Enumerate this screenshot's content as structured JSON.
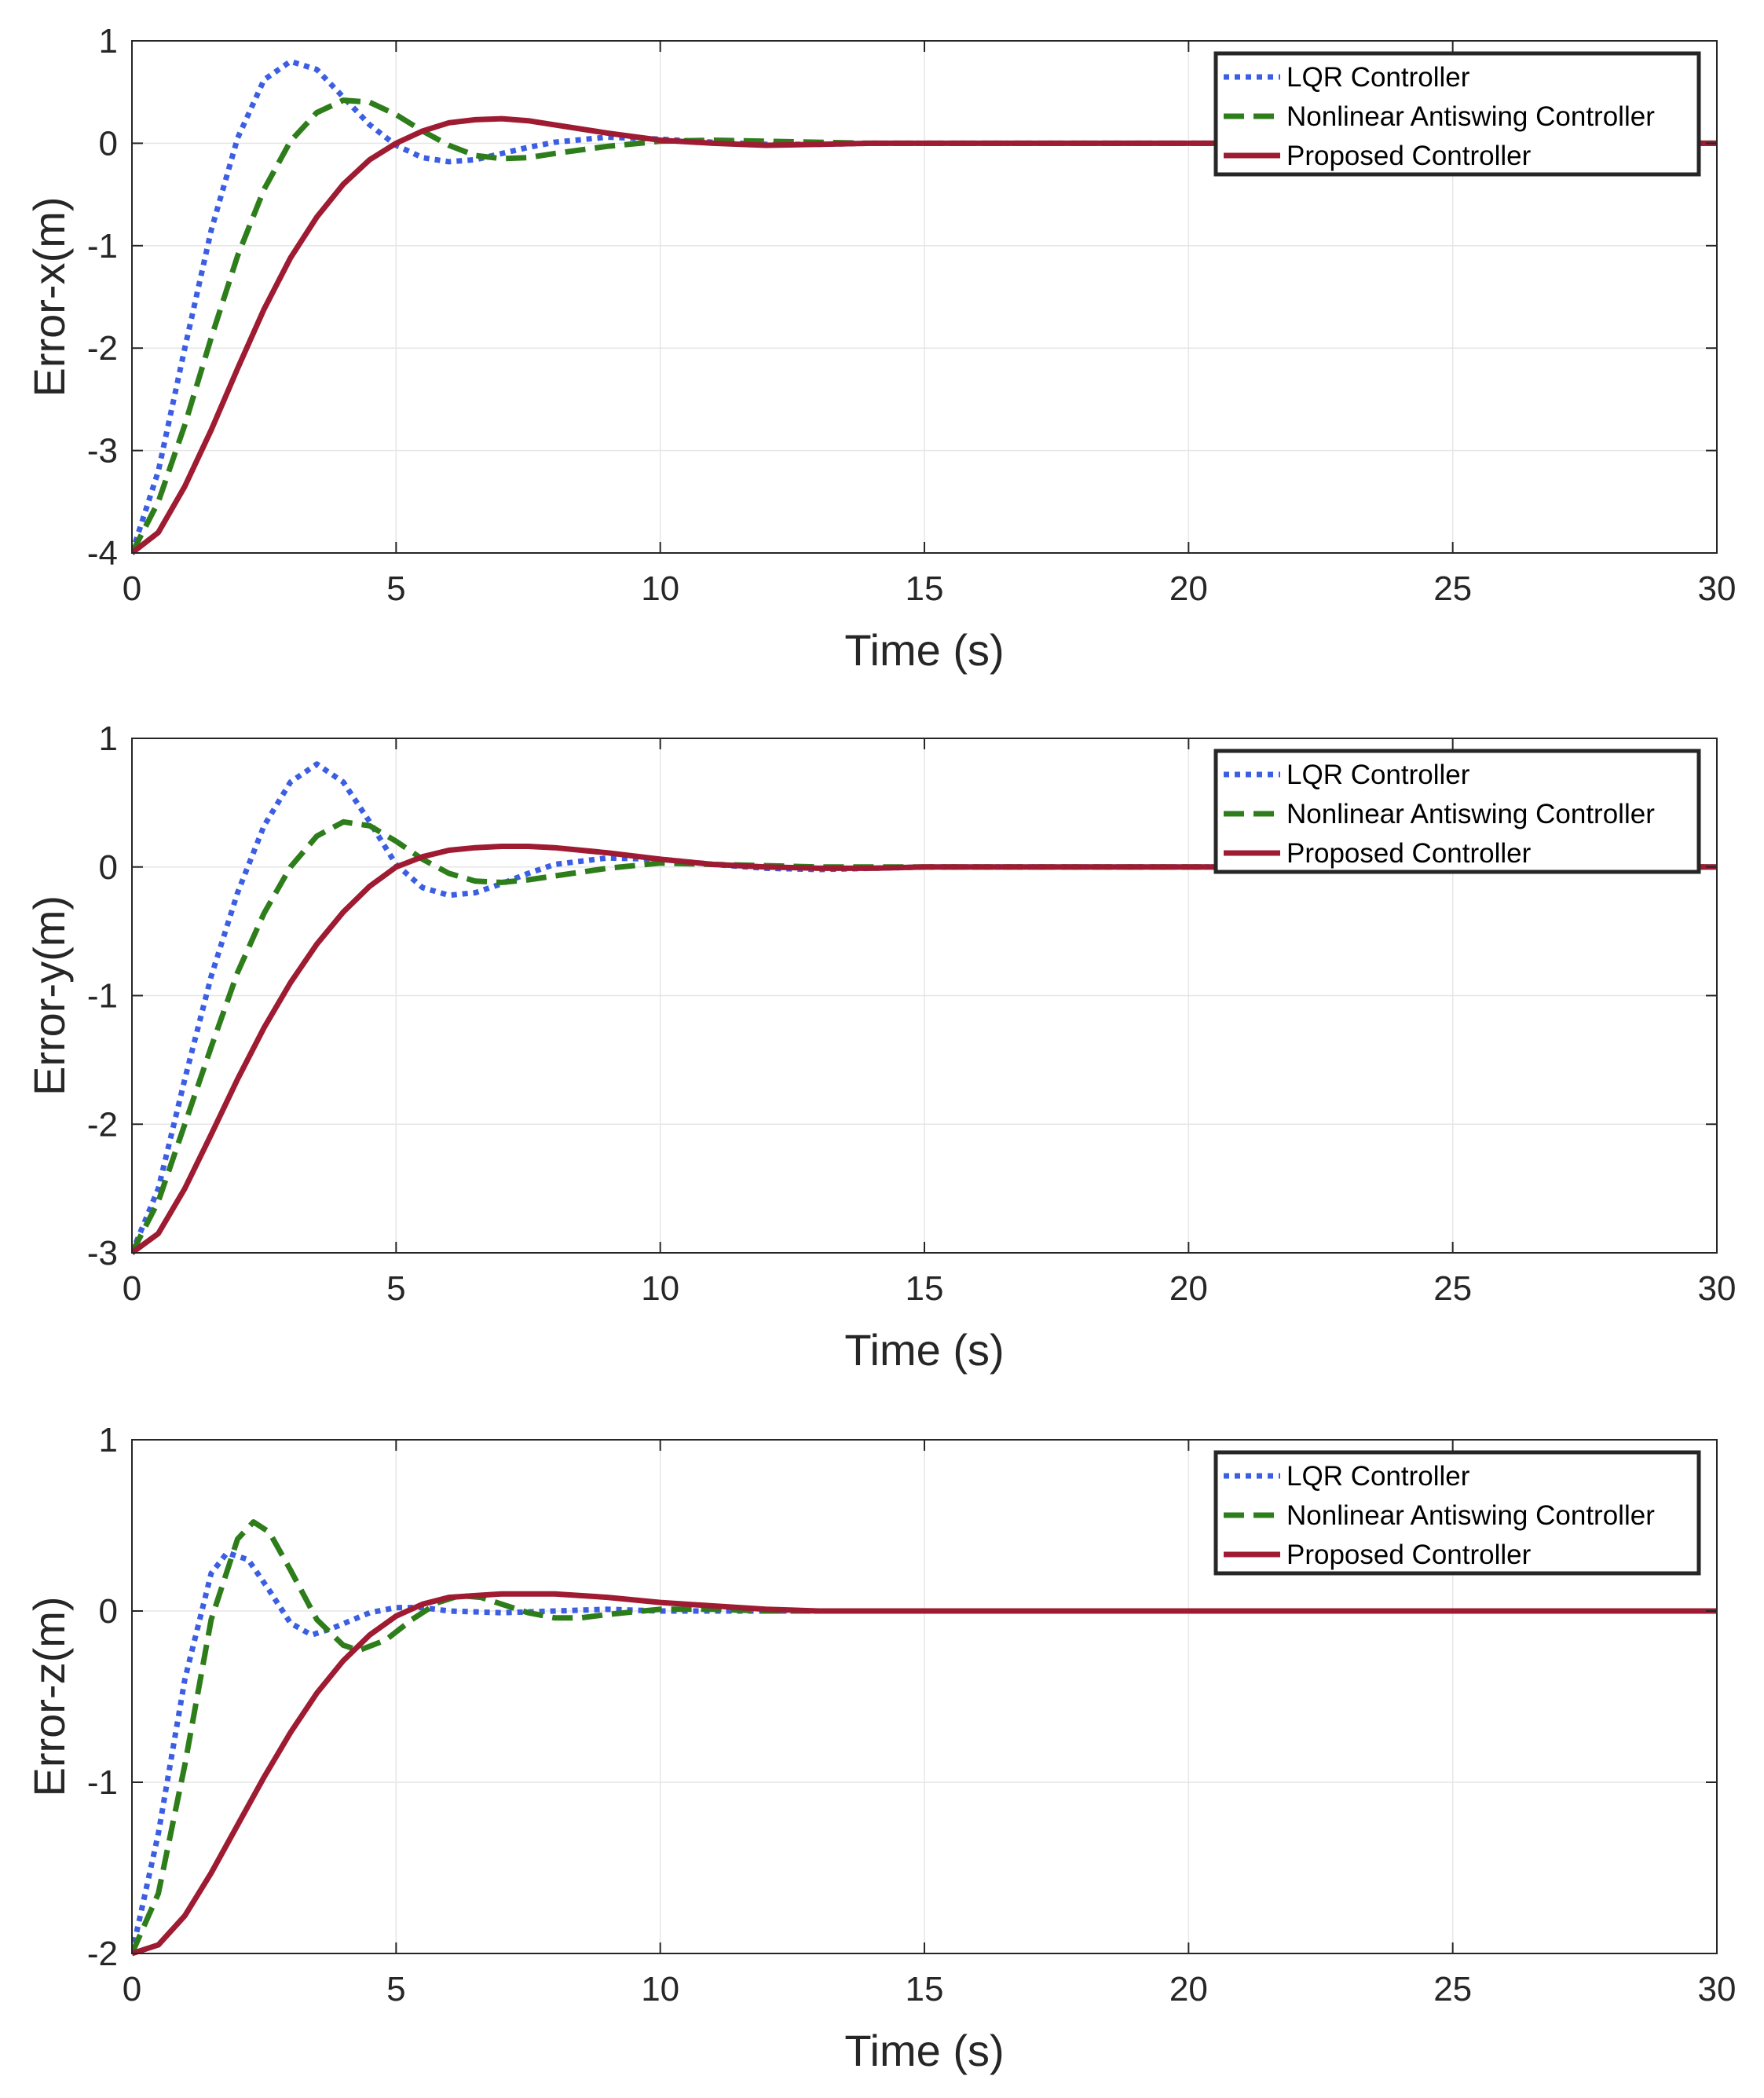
{
  "chart_data": [
    {
      "type": "line",
      "xlabel": "Time (s)",
      "ylabel": "Error-x(m)",
      "xlim": [
        0,
        30
      ],
      "ylim": [
        -4,
        1
      ],
      "xticks": [
        0,
        5,
        10,
        15,
        20,
        25,
        30
      ],
      "yticks": [
        -4,
        -3,
        -2,
        -1,
        0,
        1
      ],
      "xtick_labels": [
        "0",
        "5",
        "10",
        "15",
        "20",
        "25",
        "30"
      ],
      "ytick_labels": [
        "-4",
        "-3",
        "-2",
        "-1",
        "0",
        "1"
      ],
      "grid": true,
      "legend_position": "top-right",
      "series": [
        {
          "name": "LQR Controller",
          "color": "#3b5ee3",
          "style": "dotted",
          "x": [
            0,
            0.5,
            1,
            1.5,
            2,
            2.5,
            3,
            3.5,
            4,
            4.5,
            5,
            5.5,
            6,
            6.5,
            7,
            7.5,
            8,
            9,
            10,
            11,
            12,
            13,
            14,
            15,
            30
          ],
          "y": [
            -4,
            -3.2,
            -2.0,
            -0.85,
            0.05,
            0.62,
            0.8,
            0.72,
            0.45,
            0.18,
            -0.02,
            -0.14,
            -0.18,
            -0.16,
            -0.1,
            -0.04,
            0.01,
            0.06,
            0.04,
            0.01,
            -0.01,
            -0.01,
            0,
            0,
            0
          ]
        },
        {
          "name": "Nonlinear Antiswing Controller",
          "color": "#2e7d1b",
          "style": "dashed",
          "x": [
            0,
            0.5,
            1,
            1.5,
            2,
            2.5,
            3,
            3.5,
            4,
            4.5,
            5,
            5.5,
            6,
            6.5,
            7,
            7.5,
            8,
            9,
            10,
            11,
            12,
            13,
            14,
            15,
            30
          ],
          "y": [
            -4,
            -3.5,
            -2.75,
            -1.9,
            -1.1,
            -0.45,
            0.02,
            0.3,
            0.42,
            0.4,
            0.28,
            0.12,
            -0.02,
            -0.12,
            -0.15,
            -0.14,
            -0.1,
            -0.03,
            0.02,
            0.03,
            0.02,
            0.01,
            0,
            0,
            0
          ]
        },
        {
          "name": "Proposed Controller",
          "color": "#9e1b32",
          "style": "solid",
          "x": [
            0,
            0.5,
            1,
            1.5,
            2,
            2.5,
            3,
            3.5,
            4,
            4.5,
            5,
            5.5,
            6,
            6.5,
            7,
            7.5,
            8,
            9,
            10,
            11,
            12,
            13,
            14,
            15,
            30
          ],
          "y": [
            -4,
            -3.8,
            -3.35,
            -2.8,
            -2.2,
            -1.62,
            -1.12,
            -0.72,
            -0.4,
            -0.16,
            0.0,
            0.12,
            0.2,
            0.23,
            0.24,
            0.22,
            0.18,
            0.1,
            0.03,
            0.0,
            -0.02,
            -0.01,
            0,
            0,
            0
          ]
        }
      ]
    },
    {
      "type": "line",
      "xlabel": "Time (s)",
      "ylabel": "Error-y(m)",
      "xlim": [
        0,
        30
      ],
      "ylim": [
        -3,
        1
      ],
      "xticks": [
        0,
        5,
        10,
        15,
        20,
        25,
        30
      ],
      "yticks": [
        -3,
        -2,
        -1,
        0,
        1
      ],
      "xtick_labels": [
        "0",
        "5",
        "10",
        "15",
        "20",
        "25",
        "30"
      ],
      "ytick_labels": [
        "-3",
        "-2",
        "-1",
        "0",
        "1"
      ],
      "grid": true,
      "legend_position": "top-right",
      "series": [
        {
          "name": "LQR Controller",
          "color": "#3b5ee3",
          "style": "dotted",
          "x": [
            0,
            0.5,
            1,
            1.5,
            2,
            2.5,
            3,
            3.5,
            4,
            4.5,
            5,
            5.5,
            6,
            6.5,
            7,
            7.5,
            8,
            9,
            10,
            11,
            12,
            13,
            14,
            15,
            30
          ],
          "y": [
            -3,
            -2.5,
            -1.65,
            -0.85,
            -0.2,
            0.32,
            0.66,
            0.8,
            0.66,
            0.35,
            0.02,
            -0.16,
            -0.22,
            -0.2,
            -0.13,
            -0.05,
            0.02,
            0.07,
            0.06,
            0.02,
            -0.01,
            -0.02,
            -0.01,
            0,
            0
          ]
        },
        {
          "name": "Nonlinear Antiswing Controller",
          "color": "#2e7d1b",
          "style": "dashed",
          "x": [
            0,
            0.5,
            1,
            1.5,
            2,
            2.5,
            3,
            3.5,
            4,
            4.5,
            5,
            5.5,
            6,
            6.5,
            7,
            7.5,
            8,
            9,
            10,
            11,
            12,
            13,
            14,
            15,
            30
          ],
          "y": [
            -3,
            -2.6,
            -2.0,
            -1.4,
            -0.82,
            -0.36,
            0.0,
            0.24,
            0.35,
            0.32,
            0.2,
            0.06,
            -0.05,
            -0.11,
            -0.12,
            -0.1,
            -0.07,
            -0.01,
            0.03,
            0.02,
            0.01,
            0.0,
            0,
            0,
            0
          ]
        },
        {
          "name": "Proposed Controller",
          "color": "#9e1b32",
          "style": "solid",
          "x": [
            0,
            0.5,
            1,
            1.5,
            2,
            2.5,
            3,
            3.5,
            4,
            4.5,
            5,
            5.5,
            6,
            6.5,
            7,
            7.5,
            8,
            9,
            10,
            11,
            12,
            13,
            14,
            15,
            30
          ],
          "y": [
            -3,
            -2.85,
            -2.5,
            -2.08,
            -1.65,
            -1.25,
            -0.9,
            -0.6,
            -0.35,
            -0.15,
            0.0,
            0.08,
            0.13,
            0.15,
            0.16,
            0.16,
            0.15,
            0.11,
            0.06,
            0.02,
            0.0,
            -0.01,
            -0.01,
            0,
            0
          ]
        }
      ]
    },
    {
      "type": "line",
      "xlabel": "Time (s)",
      "ylabel": "Error-z(m)",
      "xlim": [
        0,
        30
      ],
      "ylim": [
        -2,
        1
      ],
      "xticks": [
        0,
        5,
        10,
        15,
        20,
        25,
        30
      ],
      "yticks": [
        -2,
        -1,
        0,
        1
      ],
      "xtick_labels": [
        "0",
        "5",
        "10",
        "15",
        "20",
        "25",
        "30"
      ],
      "ytick_labels": [
        "-2",
        "-1",
        "0",
        "1"
      ],
      "grid": true,
      "legend_position": "top-right",
      "series": [
        {
          "name": "LQR Controller",
          "color": "#3b5ee3",
          "style": "dotted",
          "x": [
            0,
            0.5,
            1,
            1.5,
            1.8,
            2.2,
            2.6,
            3.0,
            3.4,
            3.8,
            4.5,
            5,
            5.5,
            6,
            7,
            8,
            9,
            10,
            12,
            15,
            30
          ],
          "y": [
            -2,
            -1.3,
            -0.4,
            0.22,
            0.34,
            0.3,
            0.12,
            -0.07,
            -0.14,
            -0.1,
            -0.01,
            0.02,
            0.02,
            0.0,
            -0.01,
            0.0,
            0.01,
            0.0,
            0,
            0,
            0
          ]
        },
        {
          "name": "Nonlinear Antiswing Controller",
          "color": "#2e7d1b",
          "style": "dashed",
          "x": [
            0,
            0.5,
            1,
            1.5,
            2,
            2.3,
            2.6,
            3.0,
            3.5,
            4,
            4.3,
            4.8,
            5.3,
            5.8,
            6.2,
            6.6,
            7,
            7.5,
            8,
            8.5,
            9,
            10,
            11,
            12,
            15,
            30
          ],
          "y": [
            -2,
            -1.65,
            -0.9,
            -0.05,
            0.42,
            0.52,
            0.46,
            0.24,
            -0.05,
            -0.2,
            -0.23,
            -0.17,
            -0.05,
            0.05,
            0.09,
            0.08,
            0.04,
            -0.01,
            -0.04,
            -0.04,
            -0.02,
            0.01,
            0.01,
            0.0,
            0,
            0
          ]
        },
        {
          "name": "Proposed Controller",
          "color": "#9e1b32",
          "style": "solid",
          "x": [
            0,
            0.5,
            1,
            1.5,
            2,
            2.5,
            3,
            3.5,
            4,
            4.5,
            5,
            5.5,
            6,
            6.5,
            7,
            7.5,
            8,
            9,
            10,
            11,
            12,
            13,
            15,
            30
          ],
          "y": [
            -2,
            -1.95,
            -1.78,
            -1.53,
            -1.25,
            -0.97,
            -0.71,
            -0.48,
            -0.29,
            -0.14,
            -0.03,
            0.04,
            0.08,
            0.09,
            0.1,
            0.1,
            0.1,
            0.08,
            0.05,
            0.03,
            0.01,
            0.0,
            0,
            0
          ]
        }
      ]
    }
  ]
}
